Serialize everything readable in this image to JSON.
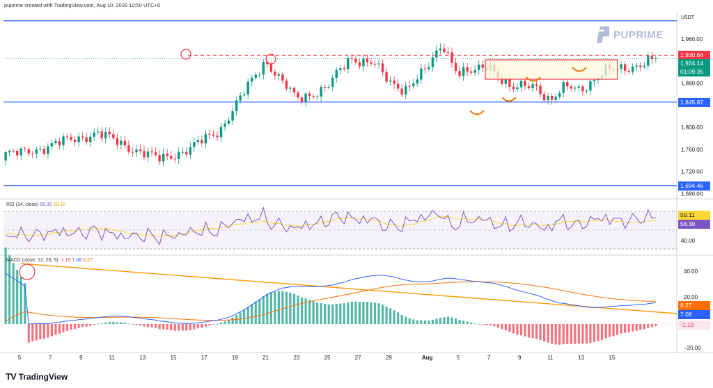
{
  "header": {
    "text": "puprime created with TradingView.com, Aug 10, 2026 10:50 UTC+8"
  },
  "brand": {
    "name": "PUPRIME"
  },
  "footer": {
    "logo_text": "TradingView",
    "logo_mark": "TV"
  },
  "colors": {
    "up": "#089981",
    "down": "#f23645",
    "level": "#2962ff",
    "resistance": "#f23645",
    "trend": "#ff9800",
    "rsi": "#7e57c2",
    "rsi_ma": "#fdd835",
    "macd": "#2962ff",
    "signal": "#ff6d00",
    "orange_mark": "#ef6c00"
  },
  "chart_data": [
    {
      "type": "candlestick",
      "quote_unit": "USDT",
      "x_tick_labels": [
        "5",
        "7",
        "9",
        "11",
        "13",
        "15",
        "17",
        "19",
        "21",
        "23",
        "25",
        "27",
        "29",
        "Aug",
        "5",
        "7",
        "9",
        "11",
        "13",
        "15"
      ],
      "y_tick_labels": [
        "1,960.00",
        "1,920.00",
        "1,880.00",
        "1,800.00",
        "1,760.00",
        "1,720.00",
        "1,680.00"
      ],
      "y_ticks": [
        1960,
        1920,
        1880,
        1800,
        1760,
        1720,
        1680
      ],
      "ylim": [
        1673,
        2008
      ],
      "horizontal_levels": [
        1993,
        1845.87,
        1694.46
      ],
      "resistance_level": 1930.64,
      "price_labels": [
        {
          "text": "1,930.64",
          "value": 1930.64,
          "kind": "resistance"
        },
        {
          "text": "1,924.14",
          "value": 1924.14,
          "kind": "last"
        },
        {
          "text": "01:09:35",
          "kind": "countdown"
        },
        {
          "text": "1,845.87",
          "value": 1845.87,
          "kind": "level"
        },
        {
          "text": "1,694.46",
          "value": 1694.46,
          "kind": "level"
        }
      ],
      "key_points": [
        {
          "day": 0,
          "close": 1752
        },
        {
          "day": 5,
          "close": 1790
        },
        {
          "day": 9,
          "close": 1742
        },
        {
          "day": 11,
          "close": 1760
        },
        {
          "day": 13,
          "close": 1795
        },
        {
          "day": 15,
          "close": 1880
        },
        {
          "day": 16,
          "close": 1922
        },
        {
          "day": 17,
          "close": 1885
        },
        {
          "day": 18,
          "close": 1850
        },
        {
          "day": 20,
          "close": 1873
        },
        {
          "day": 21.5,
          "close": 1925
        },
        {
          "day": 23,
          "close": 1918
        },
        {
          "day": 24,
          "close": 1880
        },
        {
          "day": 25,
          "close": 1870
        },
        {
          "day": 26.5,
          "close": 1905
        },
        {
          "day": 27.5,
          "close": 1952
        },
        {
          "day": 28.5,
          "close": 1900
        },
        {
          "day": 29.5,
          "close": 1898
        },
        {
          "day": 30.5,
          "close": 1915
        },
        {
          "day": 32,
          "close": 1868
        },
        {
          "day": 33.5,
          "close": 1878
        },
        {
          "day": 34.5,
          "close": 1848
        },
        {
          "day": 35.5,
          "close": 1872
        },
        {
          "day": 36.5,
          "close": 1870
        },
        {
          "day": 38,
          "close": 1900
        },
        {
          "day": 40,
          "close": 1912
        },
        {
          "day": 41,
          "close": 1920
        },
        {
          "day": 41.5,
          "close": 1924
        }
      ]
    },
    {
      "type": "line",
      "title": "RSI (14, close)",
      "series": [
        {
          "name": "RSI",
          "last": "58.30"
        },
        {
          "name": "RSI-based MA",
          "last": "59.11"
        }
      ],
      "y_tick_labels": [
        "40.00"
      ],
      "bands": [
        70,
        30
      ],
      "value_labels": [
        "59.11",
        "58.30"
      ]
    },
    {
      "type": "line",
      "title": "MACD (close, 12, 26, 9)",
      "series_values": [
        "-1.19",
        "7.08",
        "8.27"
      ],
      "y_tick_labels": [
        "40.00",
        "20.00",
        "−20.00"
      ],
      "value_labels": [
        "8.27",
        "7.08",
        "-1.19"
      ]
    }
  ]
}
